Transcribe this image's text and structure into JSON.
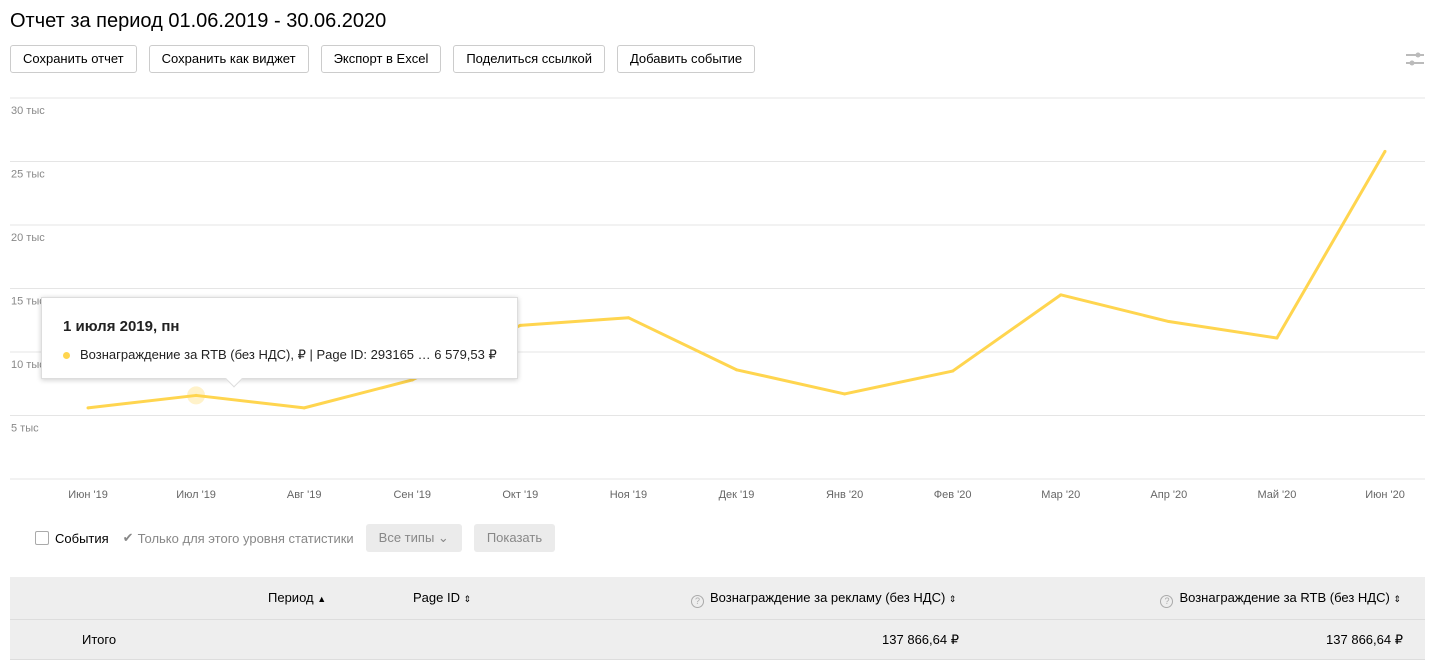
{
  "title": "Отчет за период 01.06.2019 - 30.06.2020",
  "toolbar": [
    "Сохранить отчет",
    "Сохранить как виджет",
    "Экспорт в Excel",
    "Поделиться ссылкой",
    "Добавить событие"
  ],
  "tooltip": {
    "title": "1 июля 2019, пн",
    "series": "Вознаграждение за RTB (без НДС), ₽ | Page ID: 293165",
    "value": "6 579,53 ₽"
  },
  "controls": {
    "events": "События",
    "only_level": "Только для этого уровня статистики",
    "all_types": "Все типы",
    "show": "Показать"
  },
  "table": {
    "headers": [
      "Период",
      "Page ID",
      "Вознаграждение за рекламу (без НДС)",
      "Вознаграждение за RTB (без НДС)"
    ],
    "total_label": "Итого",
    "total_ads": "137 866,64 ₽",
    "total_rtb": "137 866,64 ₽"
  },
  "chart_data": {
    "type": "line",
    "title": "",
    "categories": [
      "Июн '19",
      "Июл '19",
      "Авг '19",
      "Сен '19",
      "Окт '19",
      "Ноя '19",
      "Дек '19",
      "Янв '20",
      "Фев '20",
      "Мар '20",
      "Апр '20",
      "Май '20",
      "Июн '20"
    ],
    "series": [
      {
        "name": "Вознаграждение за RTB (без НДС), ₽ | Page ID: 293165",
        "color": "#ffd54f",
        "values": [
          5600,
          6580,
          5600,
          7800,
          12100,
          12700,
          8600,
          6700,
          8500,
          14500,
          12400,
          11100,
          25800
        ]
      }
    ],
    "yticks": [
      5000,
      10000,
      15000,
      20000,
      25000,
      30000
    ],
    "ytick_labels": [
      "5 тыс",
      "10 тыс",
      "15 тыс",
      "20 тыс",
      "25 тыс",
      "30 тыс"
    ],
    "ylim": [
      0,
      30000
    ],
    "highlighted_index": 1
  }
}
